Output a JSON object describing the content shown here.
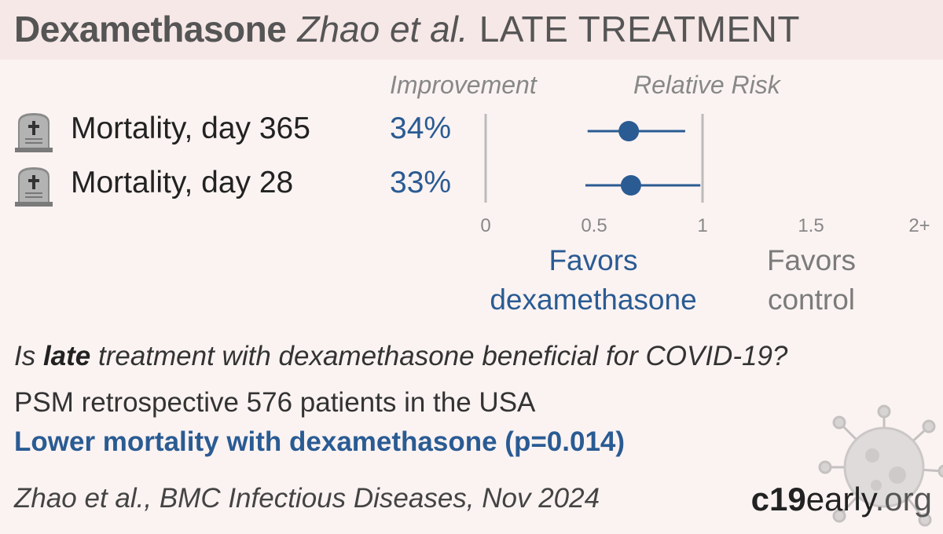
{
  "title": {
    "drug": "Dexamethasone",
    "authors": "Zhao et al.",
    "phase": "LATE TREATMENT"
  },
  "headers": {
    "improvement": "Improvement",
    "relative_risk": "Relative Risk"
  },
  "outcomes": [
    {
      "label": "Mortality, day 365",
      "improvement": "34%",
      "icon": "tombstone-icon"
    },
    {
      "label": "Mortality, day 28",
      "improvement": "33%",
      "icon": "tombstone-icon"
    }
  ],
  "chart_data": {
    "type": "scatter",
    "title": "",
    "xlabel": "Relative Risk",
    "xlim": [
      0,
      2
    ],
    "x_ticks": [
      "0",
      "0.5",
      "1",
      "1.5",
      "2+"
    ],
    "x_tick_values": [
      0,
      0.5,
      1,
      1.5,
      2
    ],
    "reference_lines": [
      0,
      1
    ],
    "series": [
      {
        "name": "Mortality, day 365",
        "rr": 0.66,
        "ci_low": 0.47,
        "ci_high": 0.92
      },
      {
        "name": "Mortality, day 28",
        "rr": 0.67,
        "ci_low": 0.46,
        "ci_high": 0.99
      }
    ],
    "favors_left": "Favors dexamethasone",
    "favors_right": "Favors control",
    "colors": {
      "point": "#2a5b93",
      "reference": "#bbbbbb",
      "tick_label": "#888888"
    }
  },
  "favors": {
    "drug_line1": "Favors",
    "drug_line2": "dexamethasone",
    "control_line1": "Favors",
    "control_line2": "control"
  },
  "question": {
    "prefix": "Is ",
    "emphasis": "late",
    "suffix": " treatment with dexamethasone beneficial for COVID-19?"
  },
  "design": "PSM retrospective 576 patients in the USA",
  "conclusion": "Lower mortality with dexamethasone (p=0.014)",
  "citation": "Zhao et al., BMC Infectious Diseases, Nov 2024",
  "logo": {
    "bold": "c19",
    "rest": "early",
    "tld": ".org"
  },
  "colors": {
    "accent": "#2a5b93",
    "background": "#fbf3f2",
    "title_bar": "#f6e8e7"
  }
}
